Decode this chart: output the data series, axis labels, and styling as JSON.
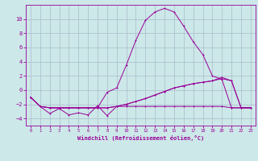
{
  "xlabel": "Windchill (Refroidissement éolien,°C)",
  "background_color": "#cce8e8",
  "grid_color": "#aabbcc",
  "line_color": "#990099",
  "xlim": [
    -0.5,
    23.5
  ],
  "ylim": [
    -5,
    12
  ],
  "xticks": [
    0,
    1,
    2,
    3,
    4,
    5,
    6,
    7,
    8,
    9,
    10,
    11,
    12,
    13,
    14,
    15,
    16,
    17,
    18,
    19,
    20,
    21,
    22,
    23
  ],
  "yticks": [
    -4,
    -2,
    0,
    2,
    4,
    6,
    8,
    10
  ],
  "line1_x": [
    0,
    1,
    2,
    3,
    4,
    5,
    6,
    7,
    8,
    9,
    10,
    11,
    12,
    13,
    14,
    15,
    16,
    17,
    18,
    19,
    20,
    21,
    22,
    23
  ],
  "line1_y": [
    -1.0,
    -2.3,
    -3.3,
    -2.6,
    -3.5,
    -3.2,
    -3.5,
    -2.2,
    -3.6,
    -2.3,
    -2.3,
    -2.3,
    -2.3,
    -2.3,
    -2.3,
    -2.3,
    -2.3,
    -2.3,
    -2.3,
    -2.3,
    -2.3,
    -2.5,
    -2.5,
    -2.5
  ],
  "line2_x": [
    0,
    1,
    2,
    3,
    4,
    5,
    6,
    7,
    8,
    9,
    10,
    11,
    12,
    13,
    14,
    15,
    16,
    17,
    18,
    19,
    20,
    21,
    22,
    23
  ],
  "line2_y": [
    -1.0,
    -2.3,
    -2.5,
    -2.5,
    -2.5,
    -2.5,
    -2.5,
    -2.5,
    -2.5,
    -2.3,
    -2.0,
    -1.6,
    -1.2,
    -0.7,
    -0.2,
    0.3,
    0.6,
    0.9,
    1.1,
    1.3,
    1.6,
    1.3,
    -2.5,
    -2.5
  ],
  "line3_x": [
    0,
    1,
    2,
    3,
    4,
    5,
    6,
    7,
    8,
    9,
    10,
    11,
    12,
    13,
    14,
    15,
    16,
    17,
    18,
    19,
    20,
    21,
    22,
    23
  ],
  "line3_y": [
    -1.0,
    -2.3,
    -2.5,
    -2.5,
    -2.5,
    -2.5,
    -2.5,
    -2.5,
    -0.3,
    0.3,
    3.5,
    7.0,
    9.8,
    11.0,
    11.5,
    11.0,
    9.0,
    6.8,
    5.0,
    2.0,
    1.5,
    -2.5,
    -2.5,
    -2.5
  ],
  "line4_x": [
    0,
    1,
    2,
    3,
    4,
    5,
    6,
    7,
    8,
    9,
    10,
    11,
    12,
    13,
    14,
    15,
    16,
    17,
    18,
    19,
    20,
    21,
    22,
    23
  ],
  "line4_y": [
    -1.0,
    -2.3,
    -2.5,
    -2.5,
    -2.5,
    -2.5,
    -2.5,
    -2.5,
    -2.5,
    -2.3,
    -2.0,
    -1.6,
    -1.2,
    -0.7,
    -0.2,
    0.3,
    0.6,
    0.9,
    1.1,
    1.3,
    1.8,
    1.3,
    -2.5,
    -2.5
  ]
}
